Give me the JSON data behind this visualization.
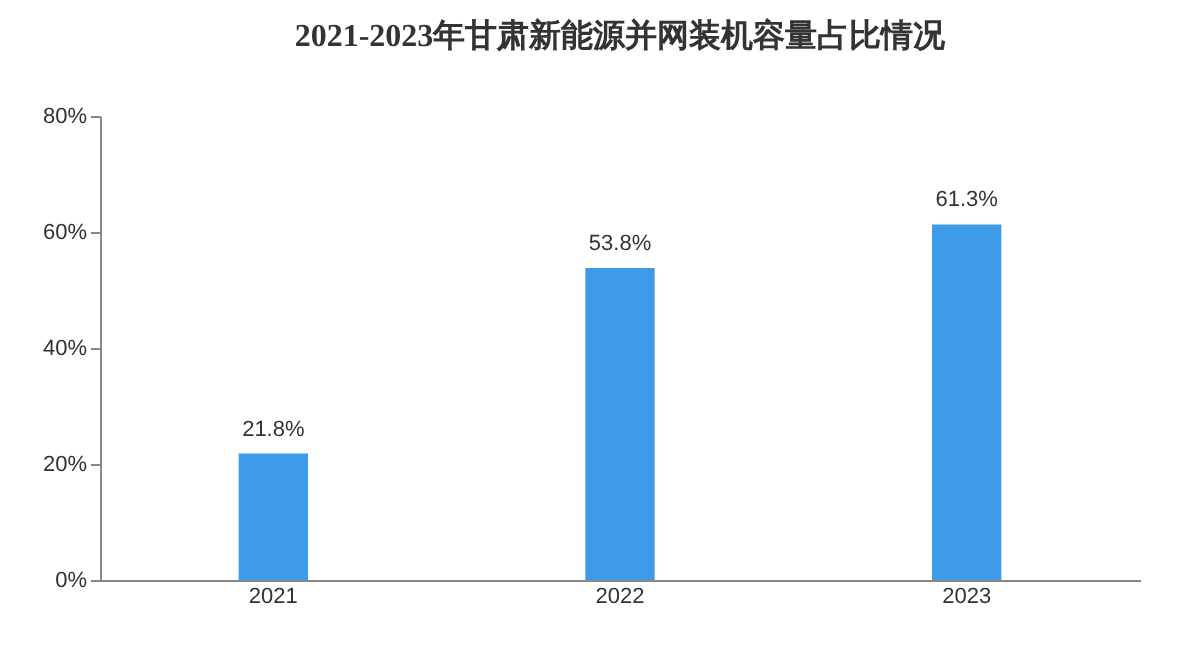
{
  "chart_data": {
    "type": "bar",
    "title": "2021-2023年甘肃新能源并网装机容量占比情况",
    "categories": [
      "2021",
      "2022",
      "2023"
    ],
    "values": [
      21.8,
      53.8,
      61.3
    ],
    "value_labels": [
      "21.8%",
      "53.8%",
      "61.3%"
    ],
    "color": "#3d9be9",
    "ylim": [
      0,
      80
    ],
    "yticks": [
      {
        "value": 0,
        "label": "0%"
      },
      {
        "value": 20,
        "label": "20%"
      },
      {
        "value": 40,
        "label": "40%"
      },
      {
        "value": 60,
        "label": "60%"
      },
      {
        "value": 80,
        "label": "80%"
      }
    ],
    "grid": false
  }
}
